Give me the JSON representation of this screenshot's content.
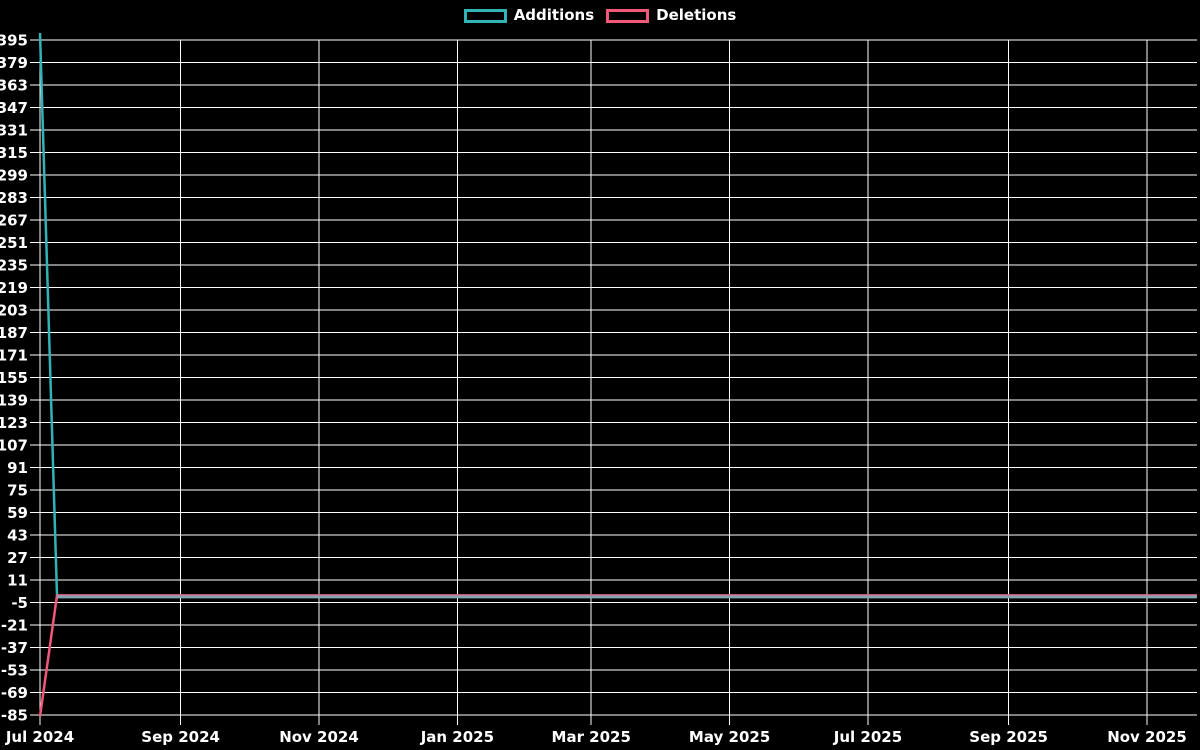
{
  "app": {
    "background_color": "#000000"
  },
  "legend": {
    "items": [
      {
        "label": "Additions",
        "color": "#31b3b7"
      },
      {
        "label": "Deletions",
        "color": "#f2587a"
      }
    ]
  },
  "chart_data": {
    "type": "line",
    "title": "",
    "xlabel": "",
    "ylabel": "",
    "x_unit": "days since 2024-07-01 (weekly points)",
    "xlim": [
      0,
      510
    ],
    "ylim": [
      -85,
      395
    ],
    "y_tick_step": 16,
    "y_ticks": [
      395,
      379,
      363,
      347,
      331,
      315,
      299,
      283,
      267,
      251,
      235,
      219,
      203,
      187,
      171,
      155,
      139,
      123,
      107,
      91,
      75,
      59,
      43,
      27,
      11,
      -5,
      -21,
      -37,
      -53,
      -69,
      -85
    ],
    "x_ticks": [
      {
        "day": 0,
        "label": "Jul 2024"
      },
      {
        "day": 62,
        "label": "Sep 2024"
      },
      {
        "day": 123,
        "label": "Nov 2024"
      },
      {
        "day": 184,
        "label": "Jan 2025"
      },
      {
        "day": 243,
        "label": "Mar 2025"
      },
      {
        "day": 304,
        "label": "May 2025"
      },
      {
        "day": 365,
        "label": "Jul 2025"
      },
      {
        "day": 427,
        "label": "Sep 2025"
      },
      {
        "day": 488,
        "label": "Nov 2025"
      }
    ],
    "grid": true,
    "grid_color": "#ffffff",
    "axis_color": "#ffffff",
    "text_color": "#ffffff",
    "legend_position": "top-center",
    "series": [
      {
        "name": "Additions",
        "color": "#31b3b7",
        "points": [
          [
            0,
            400
          ],
          [
            7.5,
            0
          ],
          [
            510,
            0
          ]
        ]
      },
      {
        "name": "Deletions",
        "color": "#f2587a",
        "points": [
          [
            0,
            -86
          ],
          [
            7.5,
            0
          ],
          [
            510,
            0
          ]
        ]
      }
    ],
    "overlap_line": {
      "color": "#87a6b3",
      "from_day": 7.5,
      "to_day": 510,
      "value": -1
    }
  }
}
